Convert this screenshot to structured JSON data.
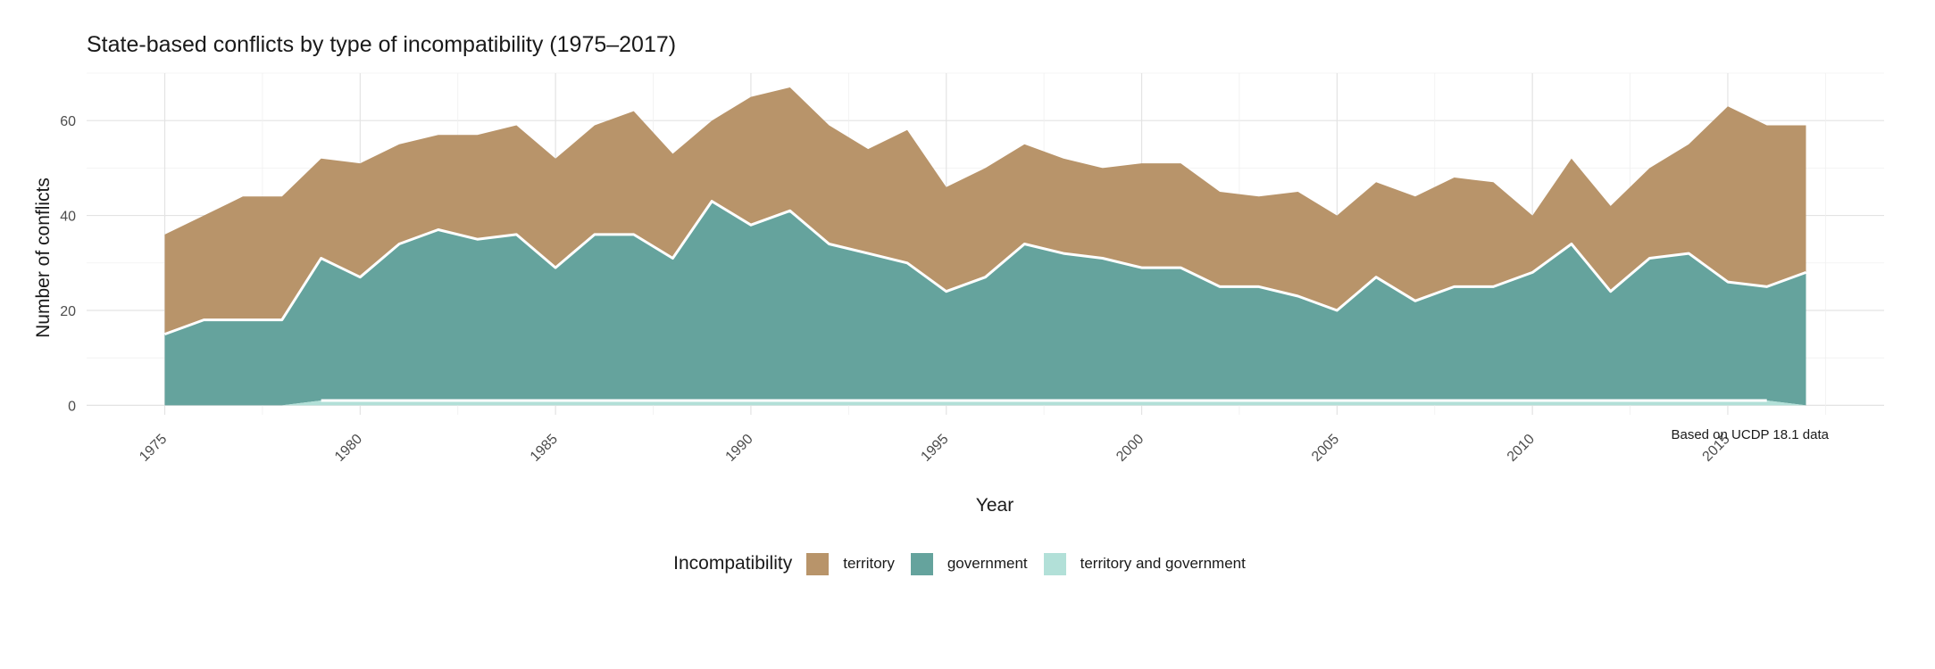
{
  "chart_data": {
    "type": "area",
    "title": "State-based conflicts by type of incompatibility (1975–2017)",
    "xlabel": "Year",
    "ylabel": "Number of conflicts",
    "caption": "Based on UCDP 18.1 data",
    "xlim": [
      1973,
      2019
    ],
    "ylim": [
      -2,
      70
    ],
    "x_ticks": [
      1975,
      1980,
      1985,
      1990,
      1995,
      2000,
      2005,
      2010,
      2015
    ],
    "y_ticks": [
      0,
      20,
      40,
      60
    ],
    "stacked": true,
    "grid": true,
    "legend_position": "bottom",
    "legend_title": "Incompatibility",
    "x": [
      1975,
      1976,
      1977,
      1978,
      1979,
      1980,
      1981,
      1982,
      1983,
      1984,
      1985,
      1986,
      1987,
      1988,
      1989,
      1990,
      1991,
      1992,
      1993,
      1994,
      1995,
      1996,
      1997,
      1998,
      1999,
      2000,
      2001,
      2002,
      2003,
      2004,
      2005,
      2006,
      2007,
      2008,
      2009,
      2010,
      2011,
      2012,
      2013,
      2014,
      2015,
      2016,
      2017
    ],
    "series": [
      {
        "name": "territory",
        "color": "#b8946a",
        "values": [
          21,
          22,
          26,
          26,
          21,
          24,
          21,
          20,
          22,
          23,
          23,
          23,
          26,
          22,
          17,
          27,
          26,
          25,
          22,
          28,
          22,
          23,
          21,
          20,
          19,
          22,
          22,
          20,
          19,
          22,
          20,
          20,
          22,
          23,
          22,
          12,
          18,
          18,
          19,
          23,
          37,
          34,
          31
        ]
      },
      {
        "name": "government",
        "color": "#65a39d",
        "values": [
          15,
          18,
          18,
          18,
          30,
          26,
          33,
          36,
          34,
          35,
          28,
          35,
          35,
          30,
          42,
          37,
          40,
          33,
          31,
          29,
          23,
          26,
          33,
          31,
          30,
          28,
          28,
          24,
          24,
          22,
          19,
          26,
          21,
          24,
          24,
          27,
          33,
          23,
          30,
          31,
          25,
          24,
          28
        ]
      },
      {
        "name": "territory and government",
        "color": "#b2e0d8",
        "values": [
          0,
          0,
          0,
          0,
          1,
          1,
          1,
          1,
          1,
          1,
          1,
          1,
          1,
          1,
          1,
          1,
          1,
          1,
          1,
          1,
          1,
          1,
          1,
          1,
          1,
          1,
          1,
          1,
          1,
          1,
          1,
          1,
          1,
          1,
          1,
          1,
          1,
          1,
          1,
          1,
          1,
          1,
          0
        ]
      }
    ]
  }
}
